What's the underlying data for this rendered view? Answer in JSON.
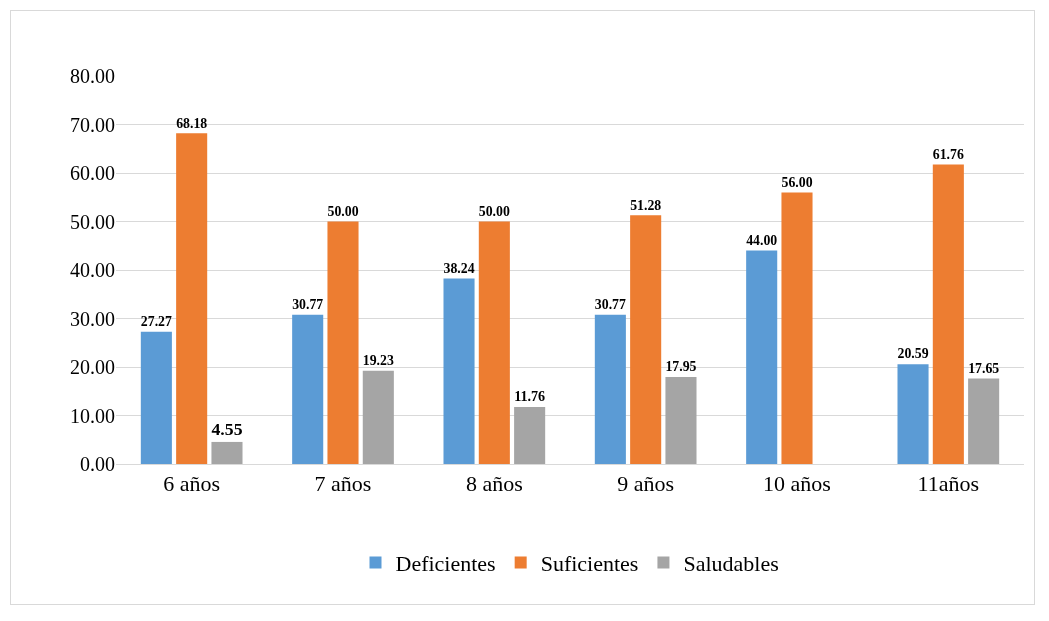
{
  "chart_data": {
    "type": "bar",
    "categories": [
      "6 años",
      "7 años",
      "8 años",
      "9 años",
      "10 años",
      "11años"
    ],
    "series": [
      {
        "name": "Deficientes",
        "color": "#5b9bd5",
        "values": [
          27.27,
          30.77,
          38.24,
          30.77,
          44.0,
          20.59
        ],
        "value_labels": [
          "27.27",
          "30.77",
          "38.24",
          "30.77",
          "44.00",
          "20.59"
        ]
      },
      {
        "name": "Suficientes",
        "color": "#ed7d31",
        "values": [
          68.18,
          50.0,
          50.0,
          51.28,
          56.0,
          61.76
        ],
        "value_labels": [
          "68.18",
          "50.00",
          "50.00",
          "51.28",
          "56.00",
          "61.76"
        ]
      },
      {
        "name": "Saludables",
        "color": "#a5a5a5",
        "values": [
          4.55,
          19.23,
          11.76,
          17.95,
          null,
          17.65
        ],
        "value_labels": [
          "4.55",
          "19.23",
          "11.76",
          "17.95",
          null,
          "17.65"
        ]
      }
    ],
    "ylim": [
      0,
      80
    ],
    "yticks": [
      {
        "value": 0,
        "label": "0.00"
      },
      {
        "value": 10,
        "label": "10.00"
      },
      {
        "value": 20,
        "label": "20.00"
      },
      {
        "value": 30,
        "label": "30.00"
      },
      {
        "value": 40,
        "label": "40.00"
      },
      {
        "value": 50,
        "label": "50.00"
      },
      {
        "value": 60,
        "label": "60.00"
      },
      {
        "value": 70,
        "label": "70.00"
      },
      {
        "value": 80,
        "label": "80.00"
      }
    ],
    "grid": "y",
    "legend": "bottom"
  }
}
